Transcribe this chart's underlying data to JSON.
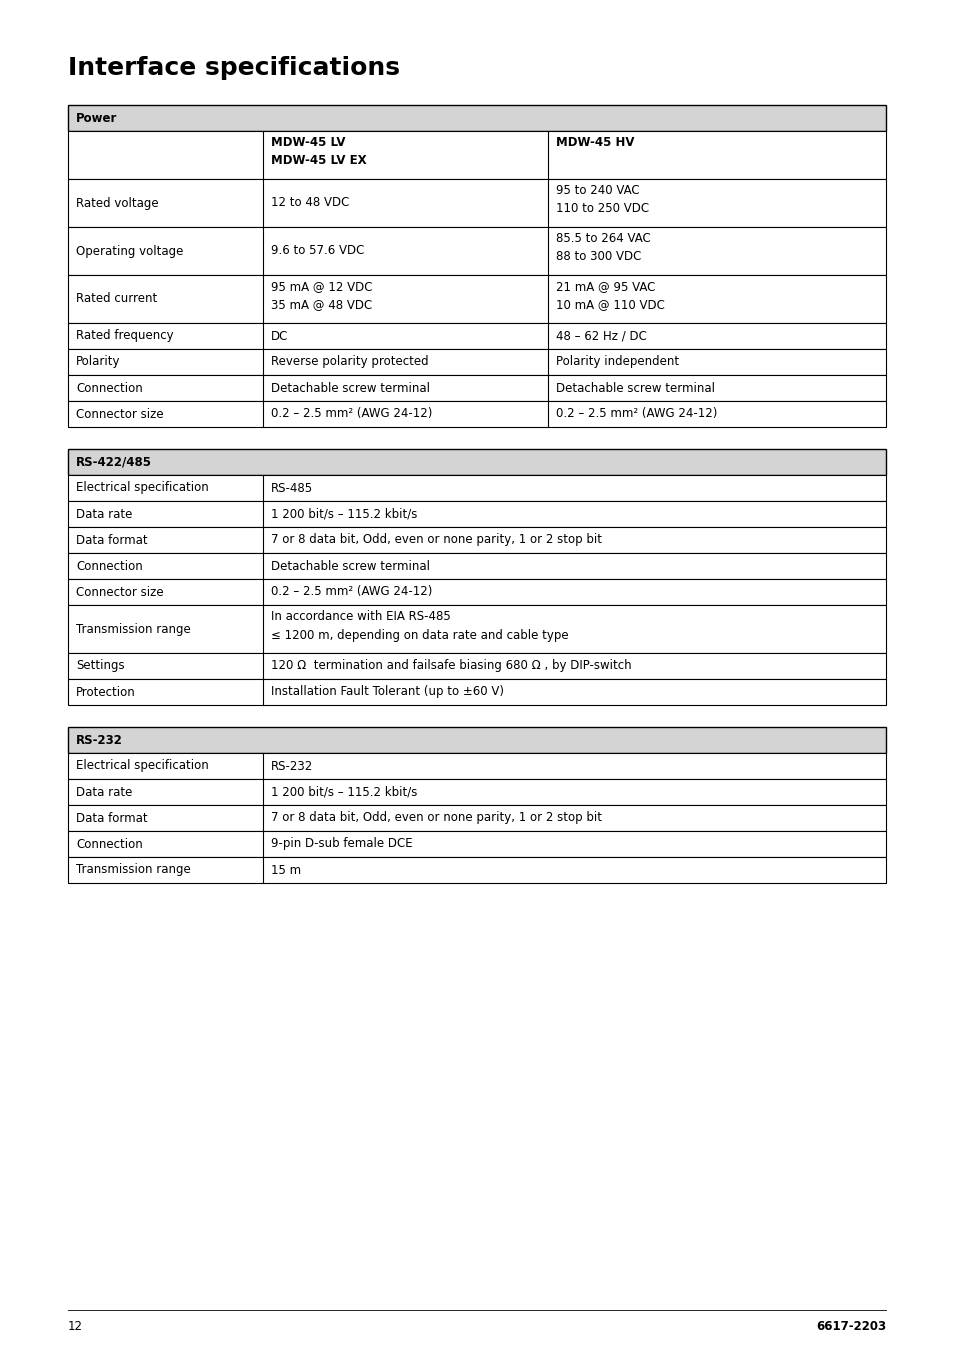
{
  "title": "Interface specifications",
  "page_num": "12",
  "doc_num": "6617-2203",
  "bg_color": "#ffffff",
  "title_fontsize": 18,
  "body_fontsize": 8.5,
  "section_header_bg": "#d4d4d4",
  "power_table": {
    "section_header": "Power",
    "rows": [
      {
        "label": "",
        "col1": "MDW-45 LV\nMDW-45 LV EX",
        "col2": "MDW-45 HV",
        "is_header": true
      },
      {
        "label": "Rated voltage",
        "col1": "12 to 48 VDC",
        "col2": "95 to 240 VAC\n110 to 250 VDC"
      },
      {
        "label": "Operating voltage",
        "col1": "9.6 to 57.6 VDC",
        "col2": "85.5 to 264 VAC\n88 to 300 VDC"
      },
      {
        "label": "Rated current",
        "col1": "95 mA @ 12 VDC\n35 mA @ 48 VDC",
        "col2": "21 mA @ 95 VAC\n10 mA @ 110 VDC"
      },
      {
        "label": "Rated frequency",
        "col1": "DC",
        "col2": "48 – 62 Hz / DC"
      },
      {
        "label": "Polarity",
        "col1": "Reverse polarity protected",
        "col2": "Polarity independent"
      },
      {
        "label": "Connection",
        "col1": "Detachable screw terminal",
        "col2": "Detachable screw terminal"
      },
      {
        "label": "Connector size",
        "col1": "0.2 – 2.5 mm² (AWG 24-12)",
        "col2": "0.2 – 2.5 mm² (AWG 24-12)"
      }
    ]
  },
  "rs485_table": {
    "section_header": "RS-422/485",
    "rows": [
      {
        "label": "Electrical specification",
        "col1": "RS-485"
      },
      {
        "label": "Data rate",
        "col1": "1 200 bit/s – 115.2 kbit/s"
      },
      {
        "label": "Data format",
        "col1": "7 or 8 data bit, Odd, even or none parity, 1 or 2 stop bit"
      },
      {
        "label": "Connection",
        "col1": "Detachable screw terminal"
      },
      {
        "label": "Connector size",
        "col1": "0.2 – 2.5 mm² (AWG 24-12)"
      },
      {
        "label": "Transmission range",
        "col1": "In accordance with EIA RS-485\n≤ 1200 m, depending on data rate and cable type"
      },
      {
        "label": "Settings",
        "col1": "120 Ω  termination and failsafe biasing 680 Ω , by DIP-switch"
      },
      {
        "label": "Protection",
        "col1": "Installation Fault Tolerant (up to ±60 V)"
      }
    ]
  },
  "rs232_table": {
    "section_header": "RS-232",
    "rows": [
      {
        "label": "Electrical specification",
        "col1": "RS-232"
      },
      {
        "label": "Data rate",
        "col1": "1 200 bit/s – 115.2 kbit/s"
      },
      {
        "label": "Data format",
        "col1": "7 or 8 data bit, Odd, even or none parity, 1 or 2 stop bit"
      },
      {
        "label": "Connection",
        "col1": "9-pin D-sub female DCE"
      },
      {
        "label": "Transmission range",
        "col1": "15 m"
      }
    ]
  }
}
